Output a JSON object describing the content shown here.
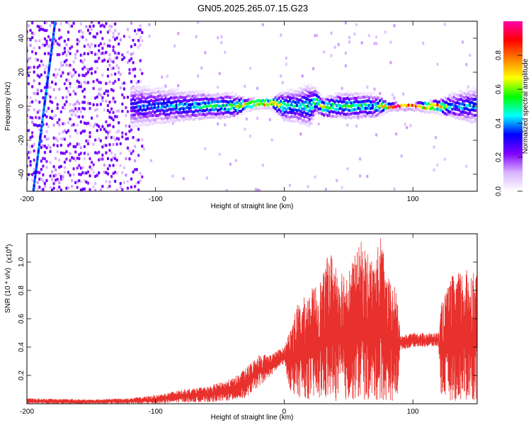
{
  "figure_title": "GN05.2025.265.07.15.G23",
  "chart_data": [
    {
      "type": "heatmap",
      "title": "GN05.2025.265.07.15.G23",
      "xlabel": "Height of straight line (km)",
      "ylabel": "Frequency (Hz)",
      "xlim": [
        -200,
        150
      ],
      "ylim": [
        -50,
        50
      ],
      "xticks": [
        -200,
        -100,
        0,
        100
      ],
      "yticks": [
        -40,
        -20,
        0,
        20,
        40
      ],
      "colorbar": {
        "label": "Normalized spectral amplitude",
        "range": [
          0,
          1
        ],
        "ticks": [
          0.0,
          0.2,
          0.4,
          0.6,
          0.8
        ],
        "colors": [
          "#ffffff",
          "#d9b3ff",
          "#8000ff",
          "#0000ff",
          "#00ffff",
          "#00ff00",
          "#ffff00",
          "#ff8000",
          "#ff0000",
          "#ff00aa"
        ]
      },
      "ridge": {
        "x": [
          -120,
          -100,
          -80,
          -60,
          -40,
          -30,
          -20,
          -10,
          0,
          10,
          20,
          25,
          30,
          40,
          50,
          60,
          70,
          80,
          90,
          100,
          110,
          120,
          130,
          140,
          150
        ],
        "freq": [
          0,
          0,
          0,
          0,
          0,
          1,
          2,
          2,
          0,
          0,
          0,
          3,
          -1,
          0,
          0,
          0,
          0,
          0,
          0,
          0,
          0,
          0,
          0,
          0,
          0
        ],
        "amplitude": [
          0.35,
          0.4,
          0.45,
          0.5,
          0.55,
          0.8,
          0.95,
          0.95,
          0.5,
          0.45,
          0.5,
          0.6,
          0.7,
          0.55,
          0.5,
          0.55,
          0.5,
          0.95,
          0.95,
          0.95,
          0.95,
          0.95,
          0.4,
          0.45,
          0.4
        ],
        "spread_hz": [
          14,
          12,
          10,
          9,
          8,
          4,
          3,
          3,
          10,
          11,
          14,
          8,
          6,
          8,
          9,
          8,
          8,
          3,
          2,
          2,
          3,
          4,
          8,
          10,
          12
        ]
      },
      "streak": {
        "x": [
          -195,
          -178
        ],
        "freq": [
          -50,
          50
        ]
      }
    },
    {
      "type": "line",
      "xlabel": "Height of straight line (km)",
      "ylabel": "SNR (10 * v/v)",
      "y_scale_label": "(x10",
      "y_scale_exponent": "4",
      "y_scale_close": ")",
      "xlim": [
        -200,
        150
      ],
      "ylim": [
        0,
        1.2
      ],
      "xticks": [
        -200,
        -100,
        0,
        100
      ],
      "yticks": [
        0.2,
        0.4,
        0.6,
        0.8,
        1.0
      ],
      "color": "#e8302c",
      "envelope": {
        "x": [
          -200,
          -150,
          -120,
          -100,
          -80,
          -60,
          -40,
          -30,
          -20,
          -10,
          -5,
          0,
          5,
          10,
          20,
          30,
          35,
          40,
          50,
          60,
          70,
          75,
          80,
          88,
          90,
          100,
          110,
          120,
          122,
          130,
          140,
          150
        ],
        "upper": [
          0.04,
          0.03,
          0.04,
          0.06,
          0.1,
          0.12,
          0.18,
          0.25,
          0.35,
          0.35,
          0.38,
          0.4,
          0.55,
          0.7,
          0.8,
          0.9,
          1.1,
          1.0,
          0.95,
          1.15,
          1.0,
          1.2,
          0.9,
          0.8,
          0.48,
          0.5,
          0.5,
          0.5,
          0.7,
          0.9,
          0.95,
          0.95
        ],
        "lower": [
          0.0,
          0.0,
          0.0,
          0.0,
          0.01,
          0.01,
          0.02,
          0.04,
          0.12,
          0.2,
          0.24,
          0.28,
          0.08,
          0.05,
          0.03,
          0.02,
          0.02,
          0.02,
          0.02,
          0.02,
          0.02,
          0.02,
          0.02,
          0.02,
          0.38,
          0.4,
          0.4,
          0.4,
          0.05,
          0.02,
          0.02,
          0.02
        ]
      }
    }
  ]
}
